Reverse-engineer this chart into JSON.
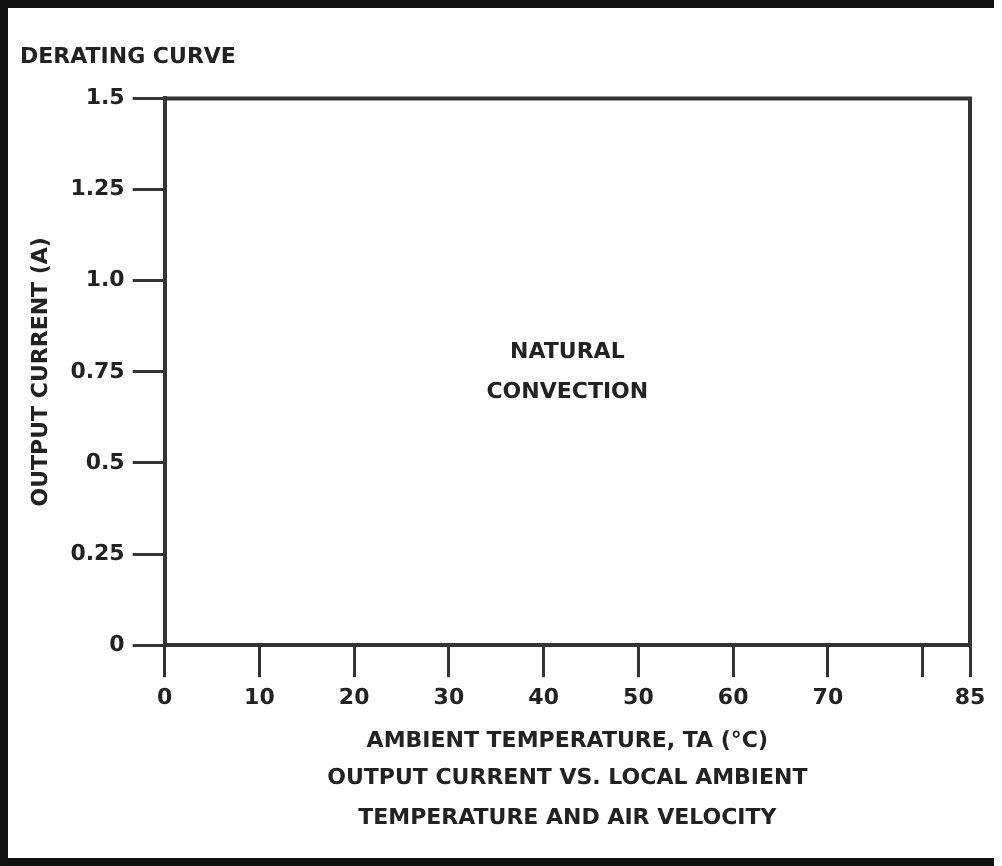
{
  "chart_data": {
    "type": "line",
    "title": "DERATING CURVE",
    "xlabel": "AMBIENT TEMPERATURE, TA (°C)",
    "ylabel": "OUTPUT CURRENT (A)",
    "annotations": [
      "NATURAL CONVECTION",
      "OUTPUT CURRENT VS. LOCAL AMBIENT TEMPERATURE AND AIR VELOCITY"
    ],
    "xlim": [
      0,
      85
    ],
    "xticks": [
      0,
      10,
      20,
      30,
      40,
      50,
      60,
      70,
      {
        "value": 80,
        "label": null
      },
      85
    ],
    "ylim": [
      0,
      1.5
    ],
    "yticks": [
      0,
      0.25,
      0.5,
      0.75,
      {
        "value": 1,
        "label": "1.0"
      },
      1.25,
      1.5
    ],
    "grid": false,
    "legend": false
  }
}
